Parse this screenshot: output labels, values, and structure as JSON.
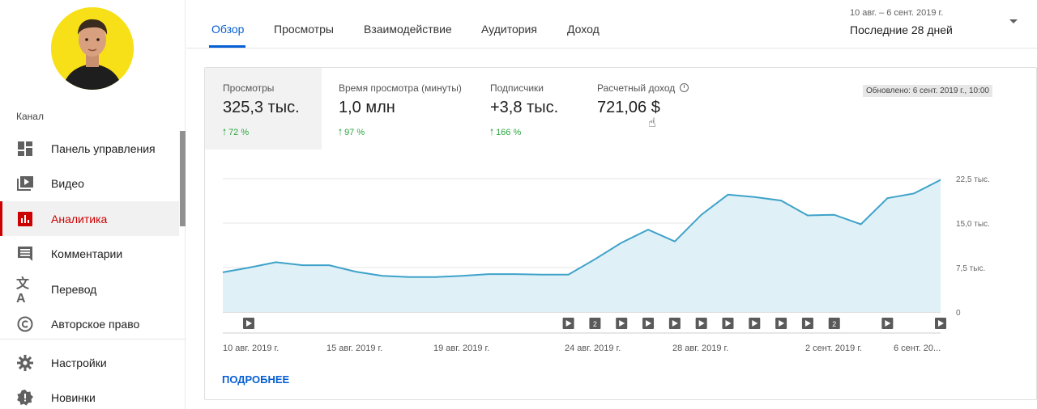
{
  "sidebar": {
    "section_label": "Канал",
    "items": [
      {
        "label": "Панель управления",
        "icon": "dashboard-icon"
      },
      {
        "label": "Видео",
        "icon": "video-library-icon"
      },
      {
        "label": "Аналитика",
        "icon": "analytics-icon",
        "active": true
      },
      {
        "label": "Комментарии",
        "icon": "comment-icon"
      },
      {
        "label": "Перевод",
        "icon": "translate-icon"
      },
      {
        "label": "Авторское право",
        "icon": "copyright-icon"
      },
      {
        "label": "Настройки",
        "icon": "gear-icon"
      },
      {
        "label": "Новинки",
        "icon": "alert-icon"
      }
    ]
  },
  "tabs": [
    "Обзор",
    "Просмотры",
    "Взаимодействие",
    "Аудитория",
    "Доход"
  ],
  "date": {
    "range": "10 авг. – 6 сент. 2019 г.",
    "period": "Последние 28 дней"
  },
  "metrics": [
    {
      "label": "Просмотры",
      "value": "325,3 тыс.",
      "delta": "72 %"
    },
    {
      "label": "Время просмотра (минуты)",
      "value": "1,0 млн",
      "delta": "97 %"
    },
    {
      "label": "Подписчики",
      "value": "+3,8 тыс.",
      "delta": "166 %"
    },
    {
      "label": "Расчетный доход",
      "value": "721,06 $",
      "delta": ""
    }
  ],
  "updated": "Обновлено: 6 сент. 2019 г., 10:00",
  "more_link": "ПОДРОБНЕЕ",
  "colors": {
    "accent": "#065fd4",
    "active_nav": "#cc0000",
    "line": "#3ea2c9",
    "area": "#dff0f7",
    "positive": "#2ba640"
  },
  "chart_data": {
    "type": "area",
    "x": [
      "10 авг.",
      "11 авг.",
      "12 авг.",
      "13 авг.",
      "14 авг.",
      "15 авг.",
      "16 авг.",
      "17 авг.",
      "18 авг.",
      "19 авг.",
      "20 авг.",
      "21 авг.",
      "22 авг.",
      "23 авг.",
      "24 авг.",
      "25 авг.",
      "26 авг.",
      "27 авг.",
      "28 авг.",
      "29 авг.",
      "30 авг.",
      "31 авг.",
      "1 сент.",
      "2 сент.",
      "3 сент.",
      "4 сент.",
      "5 сент.",
      "6 сент."
    ],
    "series": [
      {
        "values": [
          6700,
          7500,
          8400,
          7900,
          7900,
          6800,
          6100,
          5900,
          5900,
          6100,
          6400,
          6400,
          6300,
          6300,
          8900,
          11700,
          13900,
          11900,
          16400,
          19800,
          19400,
          18800,
          16300,
          16400,
          14800,
          19200,
          20000,
          22300
        ]
      }
    ],
    "yticks": [
      "22,5 тыс.",
      "15,0 тыс.",
      "7,5 тыс.",
      "0"
    ],
    "ylim": [
      0,
      22500
    ],
    "xtick_labels": [
      "10 авг. 2019 г.",
      "15 авг. 2019 г.",
      "19 авг. 2019 г.",
      "24 авг. 2019 г.",
      "28 авг. 2019 г.",
      "2 сент. 2019 г.",
      "6 сент. 20..."
    ],
    "grid": true,
    "markers": [
      {
        "day": 1,
        "label": ""
      },
      {
        "day": 14,
        "label": ""
      },
      {
        "day": 15,
        "label": "2"
      },
      {
        "day": 16,
        "label": ""
      },
      {
        "day": 17,
        "label": ""
      },
      {
        "day": 18,
        "label": ""
      },
      {
        "day": 19,
        "label": ""
      },
      {
        "day": 20,
        "label": ""
      },
      {
        "day": 21,
        "label": ""
      },
      {
        "day": 22,
        "label": ""
      },
      {
        "day": 23,
        "label": ""
      },
      {
        "day": 24,
        "label": "2"
      },
      {
        "day": 26,
        "label": ""
      },
      {
        "day": 28,
        "label": ""
      }
    ]
  }
}
